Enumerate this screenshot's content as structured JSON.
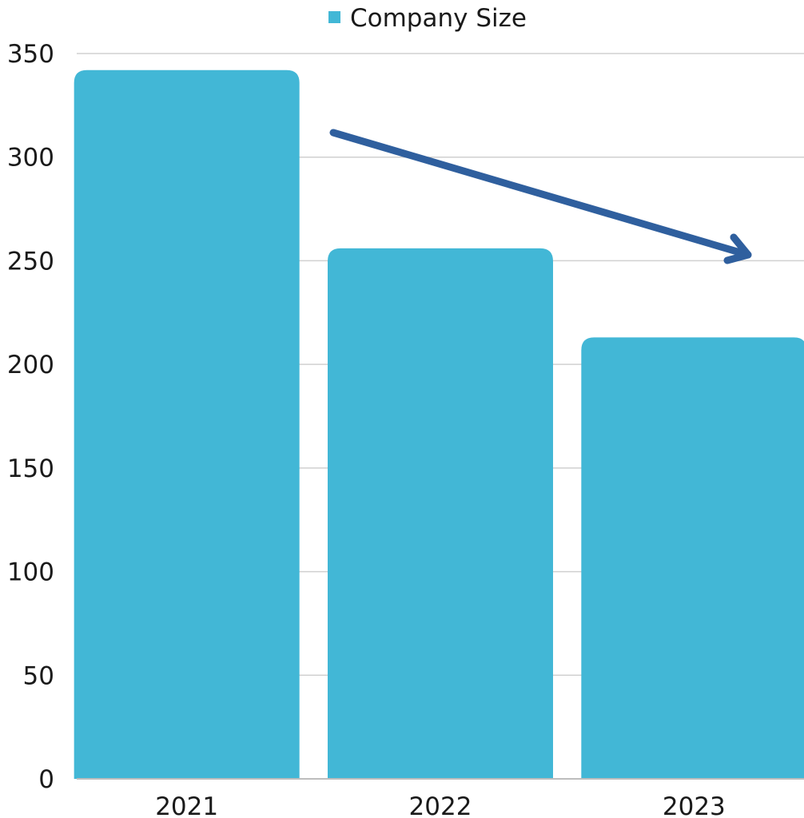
{
  "chart_data": {
    "type": "bar",
    "categories": [
      "2021",
      "2022",
      "2023"
    ],
    "series": [
      {
        "name": "Company Size",
        "values": [
          342,
          256,
          213
        ]
      }
    ],
    "ylim": [
      0,
      350
    ],
    "yticks": [
      0,
      50,
      100,
      150,
      200,
      250,
      300,
      350
    ],
    "grid": true,
    "legend": "top-center",
    "bar_color": "#42b7d6",
    "annotation": {
      "type": "arrow",
      "meaning": "downward trend",
      "color": "#2f5f9e"
    }
  }
}
